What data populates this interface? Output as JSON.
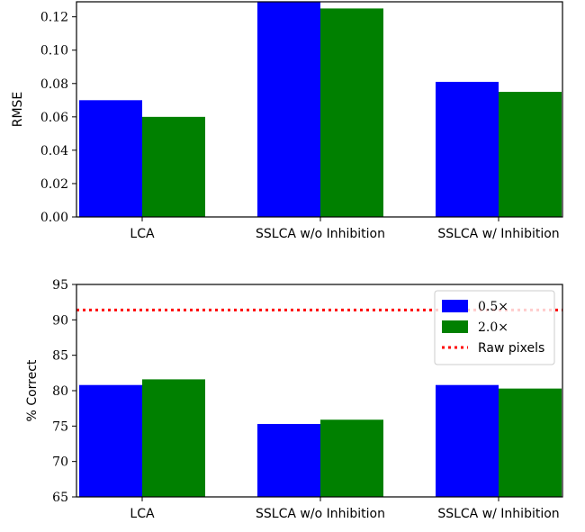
{
  "chart_data": [
    {
      "type": "bar",
      "categories": [
        "LCA",
        "SSLCA w/o Inhibition",
        "SSLCA w/ Inhibition"
      ],
      "series": [
        {
          "name": "0.5×",
          "color": "#0000ff",
          "values": [
            0.07,
            0.129,
            0.081
          ]
        },
        {
          "name": "2.0×",
          "color": "#008000",
          "values": [
            0.06,
            0.125,
            0.075
          ]
        }
      ],
      "xlabel": "",
      "ylabel": "RMSE",
      "ylim": [
        0,
        0.129
      ],
      "yticks": [
        "0.00",
        "0.02",
        "0.04",
        "0.06",
        "0.08",
        "0.10",
        "0.12"
      ],
      "ytick_values": [
        0,
        0.02,
        0.04,
        0.06,
        0.08,
        0.1,
        0.12
      ],
      "grid": false,
      "legend": "none"
    },
    {
      "type": "bar",
      "categories": [
        "LCA",
        "SSLCA w/o Inhibition",
        "SSLCA w/ Inhibition"
      ],
      "series": [
        {
          "name": "0.5×",
          "color": "#0000ff",
          "values": [
            80.8,
            75.3,
            80.8
          ]
        },
        {
          "name": "2.0×",
          "color": "#008000",
          "values": [
            81.6,
            75.9,
            80.3
          ]
        }
      ],
      "reference_line": {
        "name": "Raw pixels",
        "value": 91.4,
        "color": "#ff0000",
        "style": "dotted"
      },
      "xlabel": "",
      "ylabel": "% Correct",
      "ylim": [
        65,
        95
      ],
      "yticks": [
        "65",
        "70",
        "75",
        "80",
        "85",
        "90",
        "95"
      ],
      "ytick_values": [
        65,
        70,
        75,
        80,
        85,
        90,
        95
      ],
      "grid": false,
      "legend": "top-right"
    }
  ]
}
